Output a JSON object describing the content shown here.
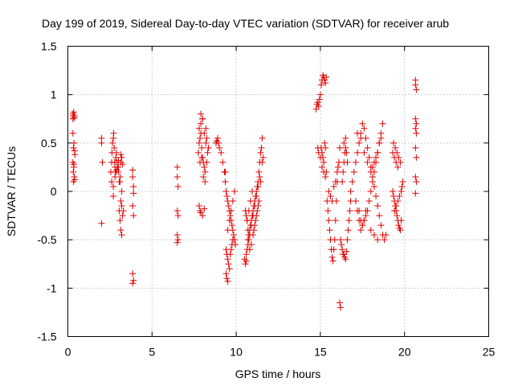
{
  "chart_data": {
    "type": "scatter",
    "title": "Day 199 of 2019, Sidereal Day-to-day VTEC variation (SDTVAR) for receiver arub",
    "xlabel": "GPS time / hours",
    "ylabel": "SDTVAR / TECUs",
    "xlim": [
      0,
      25
    ],
    "ylim": [
      -1.5,
      1.5
    ],
    "xticks": [
      0,
      5,
      10,
      15,
      20,
      25
    ],
    "yticks": [
      -1.5,
      -1,
      -0.5,
      0,
      0.5,
      1,
      1.5
    ],
    "xtick_labels": [
      "0",
      "5",
      "10",
      "15",
      "20",
      "25"
    ],
    "ytick_labels": [
      "-1.5",
      "-1",
      "-0.5",
      "0",
      "0.5",
      "1",
      "1.5"
    ],
    "grid": true,
    "marker": "plus",
    "color": "#e00000",
    "series": [
      {
        "name": "SDTVAR",
        "x": [
          0.3,
          0.3,
          0.32,
          0.35,
          0.38,
          0.4,
          0.3,
          0.33,
          0.36,
          0.4,
          0.42,
          0.3,
          0.32,
          0.35,
          0.38,
          0.4,
          0.33,
          0.36,
          2.0,
          2.0,
          2.05,
          2.0,
          2.55,
          2.6,
          2.62,
          2.65,
          2.7,
          2.72,
          2.75,
          2.78,
          2.8,
          2.82,
          2.85,
          2.88,
          2.9,
          2.95,
          3.0,
          3.05,
          3.1,
          3.15,
          3.2,
          3.25,
          2.6,
          2.7,
          2.8,
          2.9,
          3.0,
          3.1,
          3.2,
          2.7,
          2.85,
          3.0,
          3.15,
          3.05,
          3.1,
          3.15,
          3.2,
          3.25,
          3.3,
          3.15,
          3.2,
          3.85,
          3.85,
          3.9,
          3.9,
          3.85,
          3.9,
          3.85,
          3.9,
          3.85,
          6.5,
          6.5,
          6.55,
          6.5,
          6.55,
          6.5,
          6.55,
          6.5,
          7.75,
          7.8,
          7.85,
          7.9,
          7.95,
          8.0,
          8.05,
          8.1,
          8.15,
          8.2,
          8.25,
          7.8,
          7.9,
          8.0,
          8.1,
          8.2,
          7.85,
          7.95,
          8.05,
          8.15,
          7.9,
          8.0,
          7.8,
          7.85,
          7.9,
          8.0,
          8.1,
          8.25,
          8.3,
          8.35,
          8.8,
          8.85,
          8.9,
          8.95,
          9.0,
          9.1,
          9.2,
          9.3,
          9.35,
          9.4,
          9.45,
          9.5,
          9.55,
          9.6,
          9.65,
          9.7,
          9.75,
          9.8,
          9.85,
          9.9,
          9.95,
          9.4,
          9.45,
          9.5,
          9.55,
          9.6,
          9.65,
          9.7,
          9.75,
          9.8,
          9.5,
          9.6,
          9.7,
          9.8,
          9.9,
          9.4,
          9.45,
          9.5,
          9.35,
          10.5,
          10.55,
          10.6,
          10.65,
          10.7,
          10.75,
          10.8,
          10.85,
          10.9,
          10.95,
          11.0,
          11.05,
          11.1,
          11.15,
          11.2,
          11.25,
          11.3,
          11.35,
          11.4,
          11.45,
          11.5,
          11.55,
          10.6,
          10.7,
          10.8,
          10.9,
          11.0,
          11.1,
          11.2,
          11.3,
          11.4,
          10.65,
          10.75,
          10.85,
          10.95,
          11.05,
          11.15,
          11.25,
          11.35,
          10.55,
          10.6,
          10.65,
          10.7,
          10.75,
          10.8,
          10.9,
          11.0,
          11.1,
          11.2,
          11.3,
          11.45,
          11.55,
          11.6,
          14.75,
          14.8,
          14.85,
          14.9,
          14.95,
          15.0,
          15.05,
          15.1,
          15.15,
          15.2,
          15.25,
          15.3,
          15.35,
          15.05,
          15.1,
          15.15,
          15.2,
          15.25,
          15.3,
          14.85,
          14.9,
          15.0,
          15.1,
          15.2,
          15.3,
          15.35,
          15.4,
          15.45,
          15.5,
          15.55,
          15.6,
          15.65,
          15.7,
          15.75,
          15.8,
          15.85,
          15.9,
          15.95,
          16.0,
          16.05,
          16.1,
          16.15,
          15.5,
          15.6,
          15.7,
          15.8,
          15.9,
          16.0,
          16.15,
          16.2,
          16.2,
          16.25,
          16.3,
          16.35,
          16.4,
          16.45,
          16.5,
          16.55,
          16.6,
          16.65,
          16.7,
          16.75,
          16.8,
          16.3,
          16.35,
          16.4,
          16.45,
          16.5,
          16.55,
          16.6,
          16.4,
          16.5,
          16.8,
          16.9,
          17.0,
          17.1,
          17.2,
          17.3,
          17.4,
          17.5,
          17.6,
          17.7,
          17.8,
          17.9,
          18.0,
          18.1,
          18.2,
          18.3,
          18.4,
          18.5,
          18.6,
          18.7,
          18.8,
          18.9,
          17.3,
          17.4,
          17.5,
          17.6,
          17.7,
          17.8,
          17.9,
          18.0,
          18.1,
          18.2,
          18.3,
          18.4,
          18.5,
          18.6,
          18.7,
          17.1,
          17.2,
          17.3,
          17.4,
          17.5,
          17.6,
          17.7,
          18.0,
          18.1,
          18.2,
          18.3,
          18.4,
          18.5,
          18.6,
          17.2,
          17.4,
          17.6,
          17.8,
          18.0,
          18.2,
          18.4,
          19.3,
          19.35,
          19.4,
          19.45,
          19.5,
          19.55,
          19.6,
          19.65,
          19.7,
          19.75,
          19.8,
          19.35,
          19.45,
          19.55,
          19.65,
          19.75,
          19.4,
          19.5,
          19.6,
          19.7,
          19.8,
          19.85,
          19.9,
          19.3,
          19.4,
          19.5,
          19.6,
          20.65,
          20.65,
          20.7,
          20.65,
          20.7,
          20.65,
          20.7,
          20.65,
          20.7,
          20.65,
          20.7,
          20.65
        ],
        "y": [
          0.8,
          0.75,
          0.78,
          0.82,
          0.76,
          0.78,
          0.6,
          0.45,
          0.5,
          0.42,
          0.38,
          0.3,
          0.2,
          0.25,
          0.15,
          0.12,
          0.1,
          0.28,
          0.55,
          0.5,
          0.3,
          -0.33,
          0.2,
          0.3,
          0.4,
          0.5,
          0.55,
          0.6,
          0.45,
          0.3,
          0.25,
          0.2,
          0.35,
          0.4,
          0.3,
          0.25,
          0.2,
          0.1,
          0.15,
          0.3,
          0.35,
          0.28,
          0.1,
          0.05,
          0.15,
          0.22,
          0.25,
          0.1,
          0.0,
          -0.05,
          0.2,
          0.32,
          0.38,
          -0.2,
          -0.3,
          -0.4,
          -0.45,
          -0.25,
          -0.2,
          -0.1,
          -0.15,
          0.22,
          0.15,
          0.05,
          -0.02,
          -0.15,
          -0.25,
          -0.85,
          -0.92,
          -0.95,
          0.25,
          0.15,
          0.05,
          -0.2,
          -0.25,
          -0.45,
          -0.5,
          -0.53,
          0.4,
          0.5,
          0.55,
          0.6,
          0.45,
          0.35,
          0.3,
          0.25,
          0.2,
          0.5,
          0.55,
          0.65,
          0.7,
          0.75,
          0.6,
          0.65,
          0.3,
          0.35,
          0.15,
          0.1,
          0.8,
          0.75,
          -0.15,
          -0.2,
          -0.22,
          -0.25,
          -0.18,
          0.3,
          0.4,
          0.45,
          0.5,
          0.52,
          0.55,
          0.5,
          0.45,
          0.4,
          0.3,
          0.2,
          0.1,
          0.0,
          -0.05,
          -0.1,
          -0.15,
          -0.2,
          -0.25,
          -0.3,
          -0.35,
          -0.4,
          -0.45,
          -0.5,
          -0.55,
          -0.6,
          -0.65,
          -0.7,
          -0.75,
          -0.8,
          -0.65,
          -0.6,
          -0.55,
          -0.5,
          -0.4,
          -0.3,
          -0.2,
          -0.1,
          0.0,
          -0.85,
          -0.9,
          -0.93,
          0.2,
          -0.7,
          -0.75,
          -0.72,
          -0.6,
          -0.5,
          -0.45,
          -0.4,
          -0.35,
          -0.3,
          -0.25,
          -0.2,
          -0.15,
          -0.1,
          -0.05,
          0.0,
          0.05,
          0.1,
          0.2,
          0.3,
          0.4,
          0.45,
          0.55,
          -0.65,
          -0.55,
          -0.45,
          -0.35,
          -0.25,
          -0.15,
          -0.05,
          0.05,
          0.15,
          -0.3,
          -0.2,
          -0.1,
          0.0,
          -0.4,
          -0.3,
          -0.2,
          -0.1,
          -0.2,
          -0.25,
          -0.3,
          -0.4,
          -0.5,
          -0.6,
          -0.55,
          -0.45,
          -0.35,
          -0.25,
          -0.15,
          0.1,
          0.3,
          0.35,
          0.85,
          0.9,
          0.92,
          0.88,
          0.95,
          1.0,
          1.1,
          1.15,
          1.2,
          1.18,
          1.15,
          1.12,
          1.18,
          0.45,
          0.4,
          0.35,
          0.3,
          0.5,
          0.45,
          0.45,
          0.4,
          0.35,
          0.25,
          0.2,
          0.15,
          0.2,
          -0.1,
          -0.2,
          -0.3,
          -0.4,
          -0.5,
          -0.6,
          -0.68,
          -0.72,
          -0.6,
          -0.5,
          -0.3,
          -0.1,
          0.1,
          0.25,
          0.3,
          0.45,
          0.0,
          -0.05,
          -0.1,
          0.05,
          0.1,
          0.2,
          -1.15,
          -1.2,
          -0.5,
          -0.55,
          -0.6,
          -0.65,
          -0.65,
          -0.68,
          -0.7,
          -0.62,
          -0.5,
          -0.4,
          -0.3,
          -0.2,
          -0.1,
          0.1,
          0.2,
          0.3,
          0.4,
          0.45,
          0.4,
          0.3,
          0.5,
          0.55,
          0.0,
          0.1,
          0.2,
          0.3,
          0.4,
          0.5,
          0.6,
          0.7,
          0.65,
          0.55,
          0.45,
          0.35,
          0.25,
          0.15,
          0.05,
          -0.05,
          -0.15,
          -0.25,
          -0.35,
          -0.45,
          -0.5,
          -0.45,
          -0.2,
          -0.3,
          -0.35,
          -0.3,
          -0.25,
          -0.2,
          -0.1,
          0.0,
          0.1,
          0.2,
          0.3,
          0.4,
          0.5,
          0.6,
          0.7,
          -0.1,
          -0.2,
          -0.3,
          -0.4,
          -0.35,
          -0.3,
          -0.2,
          0.2,
          0.25,
          0.3,
          0.35,
          0.4,
          0.5,
          0.55,
          0.6,
          0.55,
          0.4,
          0.3,
          -0.4,
          -0.45,
          -0.5,
          0.0,
          -0.05,
          -0.1,
          -0.15,
          -0.2,
          -0.25,
          -0.3,
          -0.35,
          -0.38,
          -0.4,
          -0.3,
          0.5,
          0.45,
          0.4,
          0.35,
          0.3,
          -0.2,
          -0.15,
          -0.1,
          -0.05,
          0.0,
          0.05,
          0.1,
          0.4,
          0.35,
          0.3,
          0.25,
          1.15,
          1.1,
          1.05,
          0.75,
          0.7,
          0.65,
          0.6,
          0.45,
          0.35,
          0.15,
          0.1,
          -0.02
        ]
      }
    ]
  }
}
